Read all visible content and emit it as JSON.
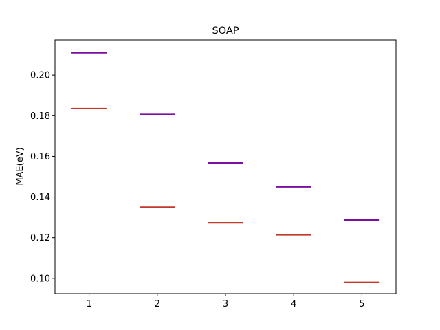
{
  "chart_data": {
    "type": "scatter",
    "title": "SOAP",
    "xlabel": "",
    "ylabel": "MAE(eV)",
    "categories": [
      "1",
      "2",
      "3",
      "4",
      "5"
    ],
    "x": [
      1,
      2,
      3,
      4,
      5
    ],
    "xlim": [
      0.5,
      5.5
    ],
    "ylim": [
      0.0925,
      0.2173
    ],
    "yticks": [
      0.1,
      0.12,
      0.14,
      0.16,
      0.18,
      0.2
    ],
    "ytick_labels": [
      "0.10",
      "0.12",
      "0.14",
      "0.16",
      "0.18",
      "0.20"
    ],
    "grid": false,
    "marker": "horizontal-line",
    "series": [
      {
        "color": "#7b0fa0",
        "values": [
          0.211,
          0.1806,
          0.1568,
          0.145,
          0.1287
        ]
      },
      {
        "color": "#c0392b",
        "values": [
          0.1835,
          0.135,
          0.1273,
          0.1214,
          0.098
        ]
      }
    ]
  }
}
